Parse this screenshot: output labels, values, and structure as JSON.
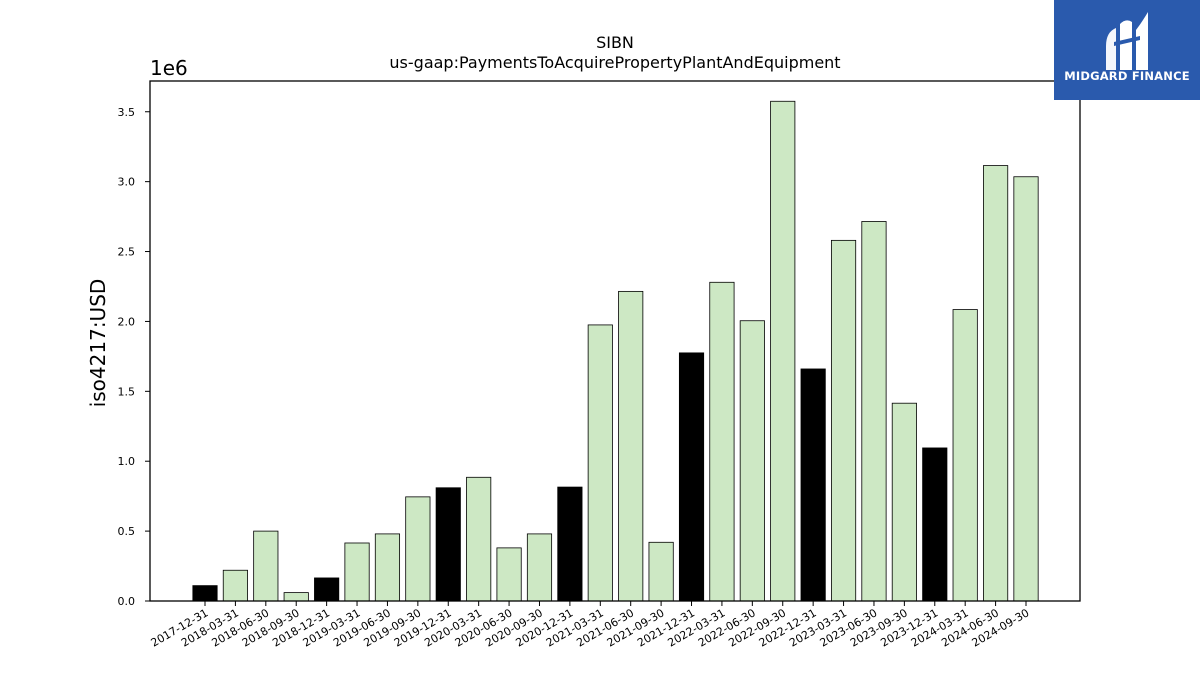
{
  "chart_data": {
    "type": "bar",
    "title": "SIBN",
    "subtitle": "us-gaap:PaymentsToAcquirePropertyPlantAndEquipment",
    "ylabel": "iso4217:USD",
    "xlabel": "",
    "y_offset_label": "1e6",
    "y_scale": 1000000,
    "ylim": [
      0,
      3720000
    ],
    "yticks": [
      0,
      500000,
      1000000,
      1500000,
      2000000,
      2500000,
      3000000,
      3500000
    ],
    "ytick_labels": [
      "0.0",
      "0.5",
      "1.0",
      "1.5",
      "2.0",
      "2.5",
      "3.0",
      "3.5"
    ],
    "grid": false,
    "categories": [
      "2017-12-31",
      "2018-03-31",
      "2018-06-30",
      "2018-09-30",
      "2018-12-31",
      "2019-03-31",
      "2019-06-30",
      "2019-09-30",
      "2019-12-31",
      "2020-03-31",
      "2020-06-30",
      "2020-09-30",
      "2020-12-31",
      "2021-03-31",
      "2021-06-30",
      "2021-09-30",
      "2021-12-31",
      "2022-03-31",
      "2022-06-30",
      "2022-09-30",
      "2022-12-31",
      "2023-03-31",
      "2023-06-30",
      "2023-09-30",
      "2023-12-31",
      "2024-03-31",
      "2024-06-30",
      "2024-09-30"
    ],
    "values": [
      110000,
      220000,
      500000,
      60000,
      165000,
      415000,
      480000,
      745000,
      810000,
      885000,
      380000,
      480000,
      815000,
      1975000,
      2215000,
      420000,
      1775000,
      2280000,
      2005000,
      3575000,
      1660000,
      2580000,
      2715000,
      1415000,
      1095000,
      2085000,
      3115000,
      3035000
    ],
    "bar_kind": [
      "annual",
      "quarter",
      "quarter",
      "quarter",
      "annual",
      "quarter",
      "quarter",
      "quarter",
      "annual",
      "quarter",
      "quarter",
      "quarter",
      "annual",
      "quarter",
      "quarter",
      "quarter",
      "annual",
      "quarter",
      "quarter",
      "quarter",
      "annual",
      "quarter",
      "quarter",
      "quarter",
      "annual",
      "quarter",
      "quarter",
      "quarter"
    ],
    "colors": {
      "annual": "#000000",
      "quarter": "#cde8c4",
      "edge": "#000000"
    }
  },
  "logo": {
    "text": "MIDGARD FINANCE",
    "background": "#2a5aad",
    "foreground": "#ffffff"
  }
}
